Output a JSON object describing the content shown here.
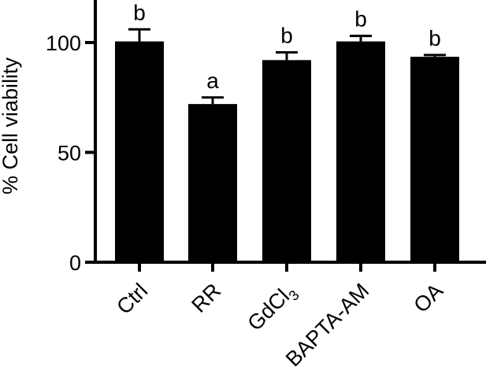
{
  "chart_data": {
    "type": "bar",
    "title": "",
    "xlabel": "",
    "ylabel": "% Cell viability",
    "ylim": [
      0,
      125
    ],
    "yticks": [
      0,
      50,
      100
    ],
    "grid": false,
    "categories": [
      {
        "name": "Ctrl",
        "base": "Ctrl",
        "sub": ""
      },
      {
        "name": "RR",
        "base": "RR",
        "sub": ""
      },
      {
        "name": "GdCl3",
        "base": "GdCl",
        "sub": "3"
      },
      {
        "name": "BAPTA-AM",
        "base": "BAPTA-AM",
        "sub": ""
      },
      {
        "name": "OA",
        "base": "OA",
        "sub": ""
      }
    ],
    "values": [
      100.5,
      72,
      92,
      100.5,
      93.5
    ],
    "errors": [
      5.5,
      3,
      3.5,
      2.5,
      0.8
    ],
    "annotations": [
      "b",
      "a",
      "b",
      "b",
      "b"
    ],
    "colors": {
      "bar": "#000000",
      "axis": "#000000",
      "background": "#ffffff"
    }
  }
}
